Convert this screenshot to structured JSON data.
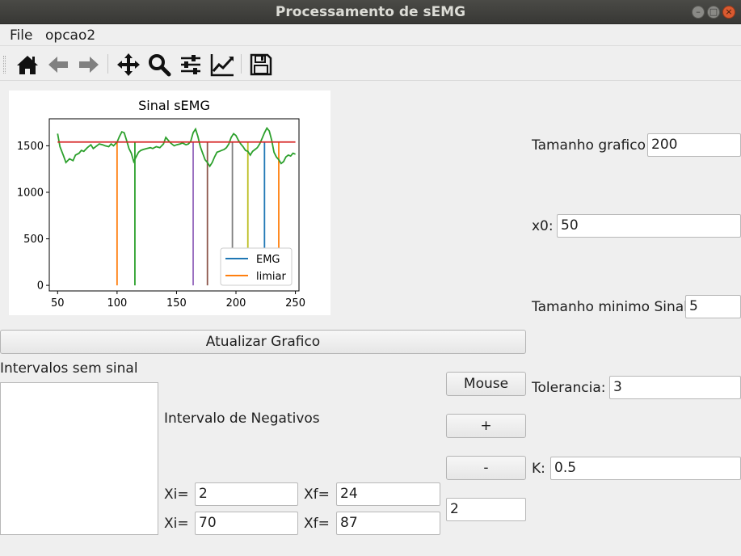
{
  "window": {
    "title": "Processamento de sEMG"
  },
  "menubar": {
    "file": "File",
    "opcao2": "opcao2"
  },
  "toolbar": {
    "icons": [
      "home-icon",
      "back-arrow-icon",
      "forward-arrow-icon",
      "pan-move-icon",
      "zoom-magnifier-icon",
      "configure-subplots-icon",
      "edit-axis-icon",
      "save-floppy-icon"
    ]
  },
  "chart_data": {
    "type": "line",
    "title": "Sinal sEMG",
    "xlabel": "",
    "ylabel": "",
    "xlim": [
      43,
      253
    ],
    "ylim": [
      -60,
      1790
    ],
    "xticks": [
      50,
      100,
      150,
      200,
      250
    ],
    "yticks": [
      0,
      500,
      1000,
      1500
    ],
    "grid": false,
    "legend": {
      "placement": "lower right",
      "entries": [
        "EMG",
        "limiar"
      ]
    },
    "threshold": {
      "value": 1540,
      "x_from": 50,
      "x_to": 250,
      "color": "#d62728"
    },
    "series": [
      {
        "name": "EMG",
        "color": "#2ca02c",
        "x": [
          50,
          52,
          55,
          57,
          60,
          63,
          65,
          68,
          70,
          72,
          75,
          78,
          80,
          83,
          85,
          88,
          90,
          93,
          95,
          97,
          100,
          102,
          104,
          106,
          108,
          110,
          112,
          114,
          116,
          118,
          120,
          122,
          125,
          128,
          130,
          133,
          136,
          139,
          141,
          143,
          145,
          148,
          150,
          153,
          155,
          158,
          160,
          162,
          164,
          166,
          168,
          170,
          172,
          174,
          176,
          178,
          180,
          182,
          184,
          186,
          188,
          190,
          192,
          194,
          196,
          198,
          200,
          202,
          204,
          206,
          208,
          210,
          212,
          214,
          216,
          218,
          220,
          222,
          224,
          226,
          228,
          230,
          232,
          234,
          236,
          238,
          240,
          242,
          244,
          246,
          248,
          250
        ],
        "y": [
          1630,
          1490,
          1390,
          1320,
          1360,
          1340,
          1400,
          1420,
          1450,
          1440,
          1480,
          1510,
          1470,
          1500,
          1520,
          1510,
          1500,
          1490,
          1520,
          1500,
          1540,
          1600,
          1650,
          1640,
          1560,
          1470,
          1420,
          1330,
          1380,
          1430,
          1450,
          1460,
          1470,
          1480,
          1470,
          1490,
          1480,
          1520,
          1590,
          1560,
          1530,
          1500,
          1510,
          1520,
          1530,
          1510,
          1520,
          1550,
          1640,
          1680,
          1600,
          1490,
          1420,
          1350,
          1320,
          1280,
          1320,
          1380,
          1430,
          1440,
          1450,
          1460,
          1480,
          1520,
          1590,
          1630,
          1610,
          1560,
          1520,
          1490,
          1450,
          1440,
          1400,
          1440,
          1460,
          1480,
          1520,
          1580,
          1640,
          1690,
          1660,
          1560,
          1430,
          1380,
          1350,
          1310,
          1330,
          1380,
          1400,
          1390,
          1420,
          1410
        ]
      },
      {
        "name": "limiar-1",
        "color": "#ff7f0e",
        "x": [
          100,
          100
        ],
        "y": [
          0,
          1540
        ]
      },
      {
        "name": "limiar-2",
        "color": "#2ca02c",
        "x": [
          115,
          115
        ],
        "y": [
          0,
          1540
        ]
      },
      {
        "name": "limiar-3",
        "color": "#9467bd",
        "x": [
          164,
          164
        ],
        "y": [
          0,
          1540
        ]
      },
      {
        "name": "limiar-4",
        "color": "#8c564b",
        "x": [
          176,
          176
        ],
        "y": [
          0,
          1540
        ]
      },
      {
        "name": "limiar-5",
        "color": "#7f7f7f",
        "x": [
          197,
          197
        ],
        "y": [
          0,
          1540
        ]
      },
      {
        "name": "limiar-6",
        "color": "#bcbd22",
        "x": [
          210,
          210
        ],
        "y": [
          0,
          1540
        ]
      },
      {
        "name": "limiar-7",
        "color": "#1f77b4",
        "x": [
          224,
          224
        ],
        "y": [
          0,
          1540
        ]
      },
      {
        "name": "limiar-8",
        "color": "#ff7f0e",
        "x": [
          236,
          236
        ],
        "y": [
          0,
          1540
        ]
      }
    ],
    "legend_colors": [
      "#1f77b4",
      "#ff7f0e"
    ]
  },
  "buttons": {
    "update_plot": "Atualizar Grafico",
    "mouse": "Mouse",
    "plus": "+",
    "minus": "-"
  },
  "labels": {
    "intervals_without_signal": "Intervalos sem sinal",
    "negative_interval": "Intervalo de Negativos",
    "xi": "Xi=",
    "xf": "Xf="
  },
  "intervals": [
    {
      "xi": "2",
      "xf": "24"
    },
    {
      "xi": "70",
      "xf": "87"
    }
  ],
  "step_value": "2",
  "params": {
    "graph_size": {
      "label": "Tamanho grafico",
      "value": "200"
    },
    "x0": {
      "label": "x0:",
      "value": "50"
    },
    "min_signal_size": {
      "label": "Tamanho minimo Sinal",
      "value": "5"
    },
    "tolerance": {
      "label": "Tolerancia:",
      "value": "3"
    },
    "k": {
      "label": "K:",
      "value": "0.5"
    }
  }
}
